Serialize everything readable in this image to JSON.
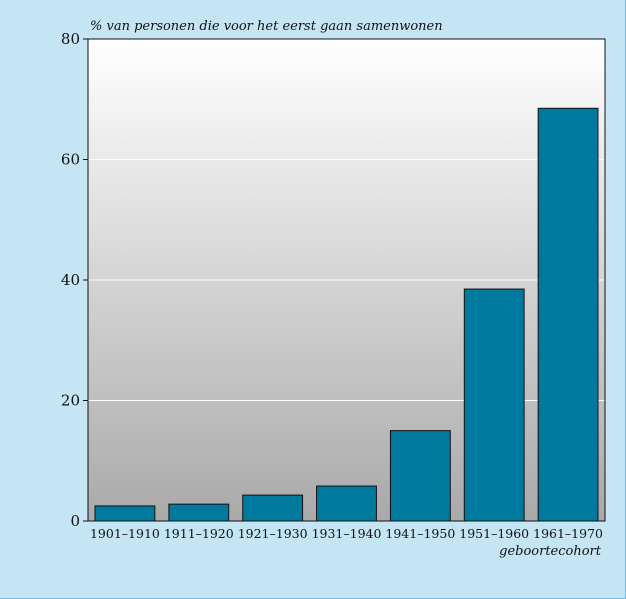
{
  "chart_data": {
    "type": "bar",
    "ylabel": "% van personen die voor het eerst gaan samenwonen",
    "xlabel": "geboortecohort",
    "categories": [
      "1901–1910",
      "1911–1920",
      "1921–1930",
      "1931–1940",
      "1941–1950",
      "1951–1960",
      "1961–1970"
    ],
    "values": [
      2.5,
      2.8,
      4.3,
      5.8,
      15,
      38.5,
      68.5
    ],
    "ylim": [
      0,
      80
    ],
    "yticks": [
      0,
      20,
      40,
      60,
      80
    ],
    "grid": true,
    "legend": "none",
    "colors": {
      "bar": "#00799f",
      "frame_background": "#c5e5f5",
      "plot_gradient_top": "#ffffff",
      "plot_gradient_bottom": "#a9a9a9",
      "gridline": "#ffffff"
    }
  }
}
